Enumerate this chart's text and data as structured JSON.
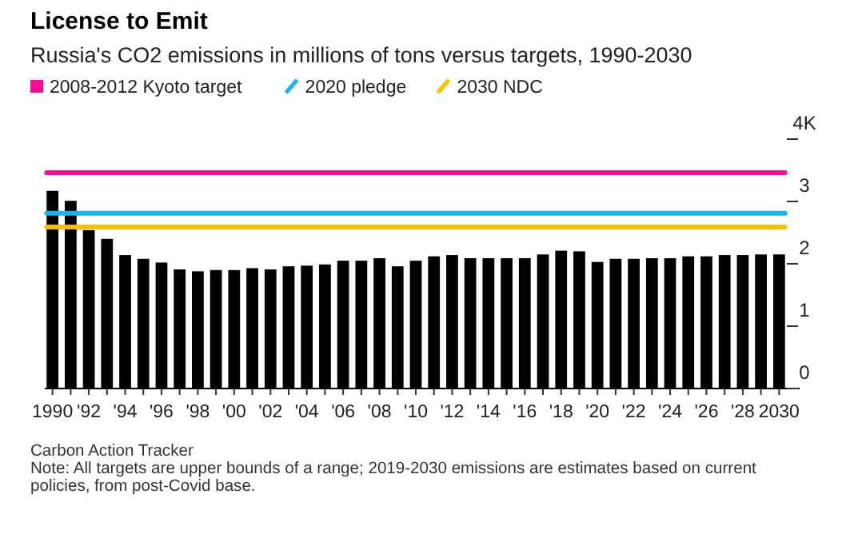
{
  "chart_data": {
    "type": "bar",
    "title": "License to Emit",
    "subtitle": "Russia's CO2 emissions in millions of tons versus targets, 1990-2030",
    "categories": [
      "1990",
      null,
      "'92",
      null,
      "'94",
      null,
      "'96",
      null,
      "'98",
      null,
      "'00",
      null,
      "'02",
      null,
      "'04",
      null,
      "'06",
      null,
      "'08",
      null,
      "'10",
      null,
      "'12",
      null,
      "'14",
      null,
      "'16",
      null,
      "'18",
      null,
      "'20",
      null,
      "'22",
      null,
      "'24",
      null,
      "'26",
      null,
      "'28",
      null,
      "2030"
    ],
    "values": [
      3.17,
      3.01,
      2.54,
      2.4,
      2.14,
      2.08,
      2.02,
      1.91,
      1.88,
      1.9,
      1.9,
      1.93,
      1.91,
      1.96,
      1.97,
      1.99,
      2.05,
      2.05,
      2.09,
      1.96,
      2.05,
      2.12,
      2.14,
      2.09,
      2.09,
      2.09,
      2.09,
      2.15,
      2.21,
      2.2,
      2.03,
      2.08,
      2.08,
      2.09,
      2.09,
      2.12,
      2.12,
      2.14,
      2.14,
      2.15,
      2.15
    ],
    "color": "#000000",
    "ylim": [
      0,
      4
    ],
    "yticks": [
      0,
      1,
      2,
      3,
      {
        "value": 4,
        "label": "4K"
      }
    ],
    "grid": false,
    "legend": "top left",
    "ref_lines": [
      {
        "axis": "y",
        "value": 3.46,
        "label": "2008-2012 Kyoto target",
        "color": "#ff0a93"
      },
      {
        "axis": "y",
        "value": 2.81,
        "label": "2020 pledge",
        "color": "#18b4f1"
      },
      {
        "axis": "y",
        "value": 2.59,
        "label": "2030 NDC",
        "color": "#ffbd00"
      }
    ],
    "annotations": [
      "Carbon Action Tracker",
      "Note: All targets are upper bounds of a range; 2019-2030 emissions are estimates based on current policies, from post-Covid base."
    ]
  }
}
